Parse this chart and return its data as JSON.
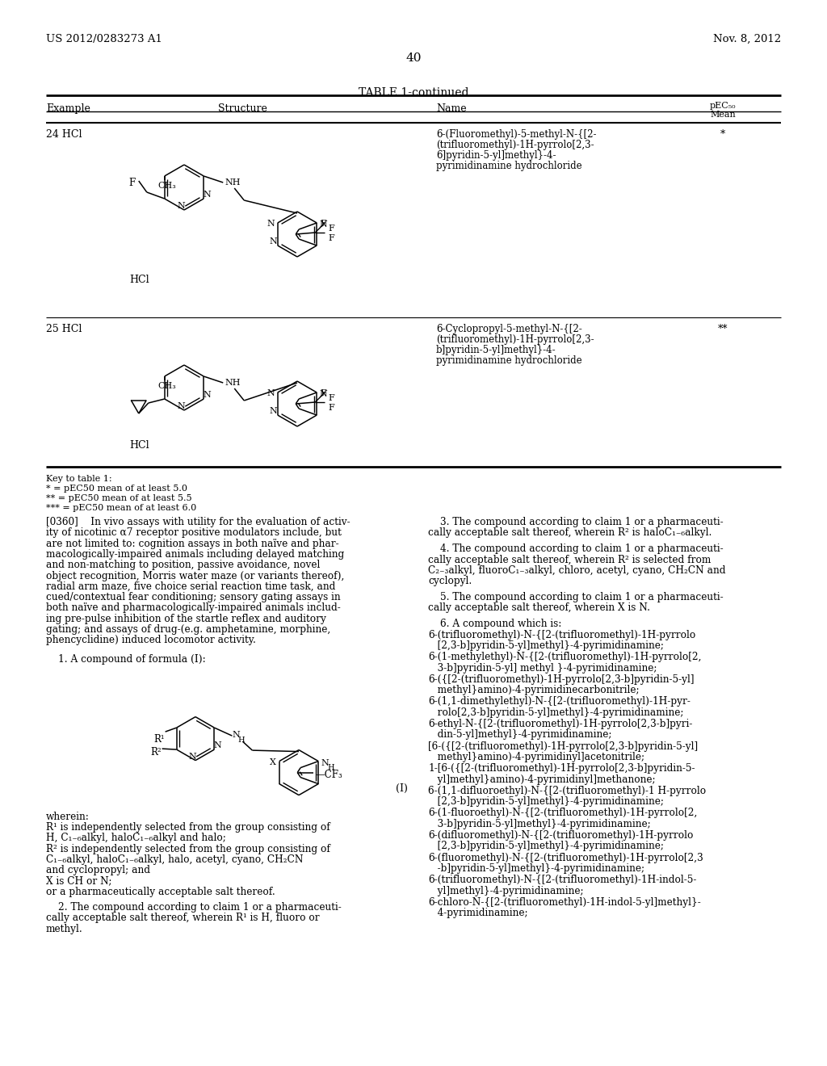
{
  "page_number": "40",
  "patent_number": "US 2012/0283273 A1",
  "patent_date": "Nov. 8, 2012",
  "table_title": "TABLE 1-continued",
  "background_color": "#ffffff",
  "key_lines": [
    "Key to table 1:",
    "* = pEC50 mean of at least 5.0",
    "** = pEC50 mean of at least 5.5",
    "*** = pEC50 mean of at least 6.0"
  ],
  "row24_example": "24 HCl",
  "row24_name_lines": [
    "6-(Fluoromethyl)-5-methyl-N-{[2-",
    "(trifluoromethyl)-1H-pyrrolo[2,3-",
    "6]pyridin-5-yl]methyl}-4-",
    "pyrimidinamine hydrochloride"
  ],
  "row24_pec50": "*",
  "row25_example": "25 HCl",
  "row25_name_lines": [
    "6-Cyclopropyl-5-methyl-N-{[2-",
    "(trifluoromethyl)-1H-pyrrolo[2,3-",
    "b]pyridin-5-yl]methyl}-4-",
    "pyrimidinamine hydrochloride"
  ],
  "row25_pec50": "**",
  "para0360_lines": [
    "[0360]    In vivo assays with utility for the evaluation of activ-",
    "ity of nicotinic α7 receptor positive modulators include, but",
    "are not limited to: cognition assays in both naïve and phar-",
    "macologically-impaired animals including delayed matching",
    "and non-matching to position, passive avoidance, novel",
    "object recognition, Morris water maze (or variants thereof),",
    "radial arm maze, five choice serial reaction time task, and",
    "cued/contextual fear conditioning; sensory gating assays in",
    "both naïve and pharmacologically-impaired animals includ-",
    "ing pre-pulse inhibition of the startle reflex and auditory",
    "gating; and assays of drug-(e.g. amphetamine, morphine,",
    "phencyclidine) induced locomotor activity."
  ],
  "claim1_line": "1. A compound of formula (I):",
  "wherein_lines": [
    "wherein:",
    "R¹ is independently selected from the group consisting of",
    "H, C₁₋₆alkyl, haloC₁₋₆alkyl and halo;",
    "R² is independently selected from the group consisting of",
    "C₁₋₆alkyl, haloC₁₋₆alkyl, halo, acetyl, cyano, CH₂CN",
    "and cyclopropyl; and",
    "X is CH or N;",
    "or a pharmaceutically acceptable salt thereof."
  ],
  "claim2_lines": [
    "2. The compound according to claim 1 or a pharmaceuti-",
    "cally acceptable salt thereof, wherein R¹ is H, fluoro or",
    "methyl."
  ],
  "claim3_lines": [
    "3. The compound according to claim 1 or a pharmaceuti-",
    "cally acceptable salt thereof, wherein R² is haloC₁₋₆alkyl."
  ],
  "claim4_lines": [
    "4. The compound according to claim 1 or a pharmaceuti-",
    "cally acceptable salt thereof, wherein R² is selected from",
    "C₂₋₃alkyl, fluoroC₁₋₃alkyl, chloro, acetyl, cyano, CH₂CN and",
    "cyclopyl."
  ],
  "claim5_lines": [
    "5. The compound according to claim 1 or a pharmaceuti-",
    "cally acceptable salt thereof, wherein X is N."
  ],
  "claim6_header": "6. A compound which is:",
  "claim6_items": [
    [
      "6-(trifluoromethyl)-N-{[2-(trifluoromethyl)-1H-pyrrolo",
      "   [2,3-b]pyridin-5-yl]methyl}-4-pyrimidinamine;"
    ],
    [
      "6-(1-methylethyl)-N-{[2-(trifluoromethyl)-1H-pyrrolo[2,",
      "   3-b]pyridin-5-yl] methyl }-4-pyrimidinamine;"
    ],
    [
      "6-({[2-(trifluoromethyl)-1H-pyrrolo[2,3-b]pyridin-5-yl]",
      "   methyl}amino)-4-pyrimidinecarbonitrile;"
    ],
    [
      "6-(1,1-dimethylethyl)-N-{[2-(trifluoromethyl)-1H-pyr-",
      "   rolo[2,3-b]pyridin-5-yl]methyl}-4-pyrimidinamine;"
    ],
    [
      "6-ethyl-N-{[2-(trifluoromethyl)-1H-pyrrolo[2,3-b]pyri-",
      "   din-5-yl]methyl}-4-pyrimidinamine;"
    ],
    [
      "[6-({[2-(trifluoromethyl)-1H-pyrrolo[2,3-b]pyridin-5-yl]",
      "   methyl}amino)-4-pyrimidinyl]acetonitrile;"
    ],
    [
      "1-[6-({[2-(trifluoromethyl)-1H-pyrrolo[2,3-b]pyridin-5-",
      "   yl]methyl}amino)-4-pyrimidinyl]methanone;"
    ],
    [
      "6-(1,1-difluoroethyl)-N-{[2-(trifluoromethyl)-1 H-pyrrolo",
      "   [2,3-b]pyridin-5-yl]methyl}-4-pyrimidinamine;"
    ],
    [
      "6-(1-fluoroethyl)-N-{[2-(trifluoromethyl)-1H-pyrrolo[2,",
      "   3-b]pyridin-5-yl]methyl}-4-pyrimidinamine;"
    ],
    [
      "6-(difluoromethyl)-N-{[2-(trifluoromethyl)-1H-pyrrolo",
      "   [2,3-b]pyridin-5-yl]methyl}-4-pyrimidinamine;"
    ],
    [
      "6-(fluoromethyl)-N-{[2-(trifluoromethyl)-1H-pyrrolo[2,3",
      "   -b]pyridin-5-yl]methyl}-4-pyrimidinamine;"
    ],
    [
      "6-(trifluoromethyl)-N-{[2-(trifluoromethyl)-1H-indol-5-",
      "   yl]methyl}-4-pyrimidinamine;"
    ],
    [
      "6-chloro-N-{[2-(trifluoromethyl)-1H-indol-5-yl]methyl}-",
      "   4-pyrimidinamine;"
    ]
  ]
}
